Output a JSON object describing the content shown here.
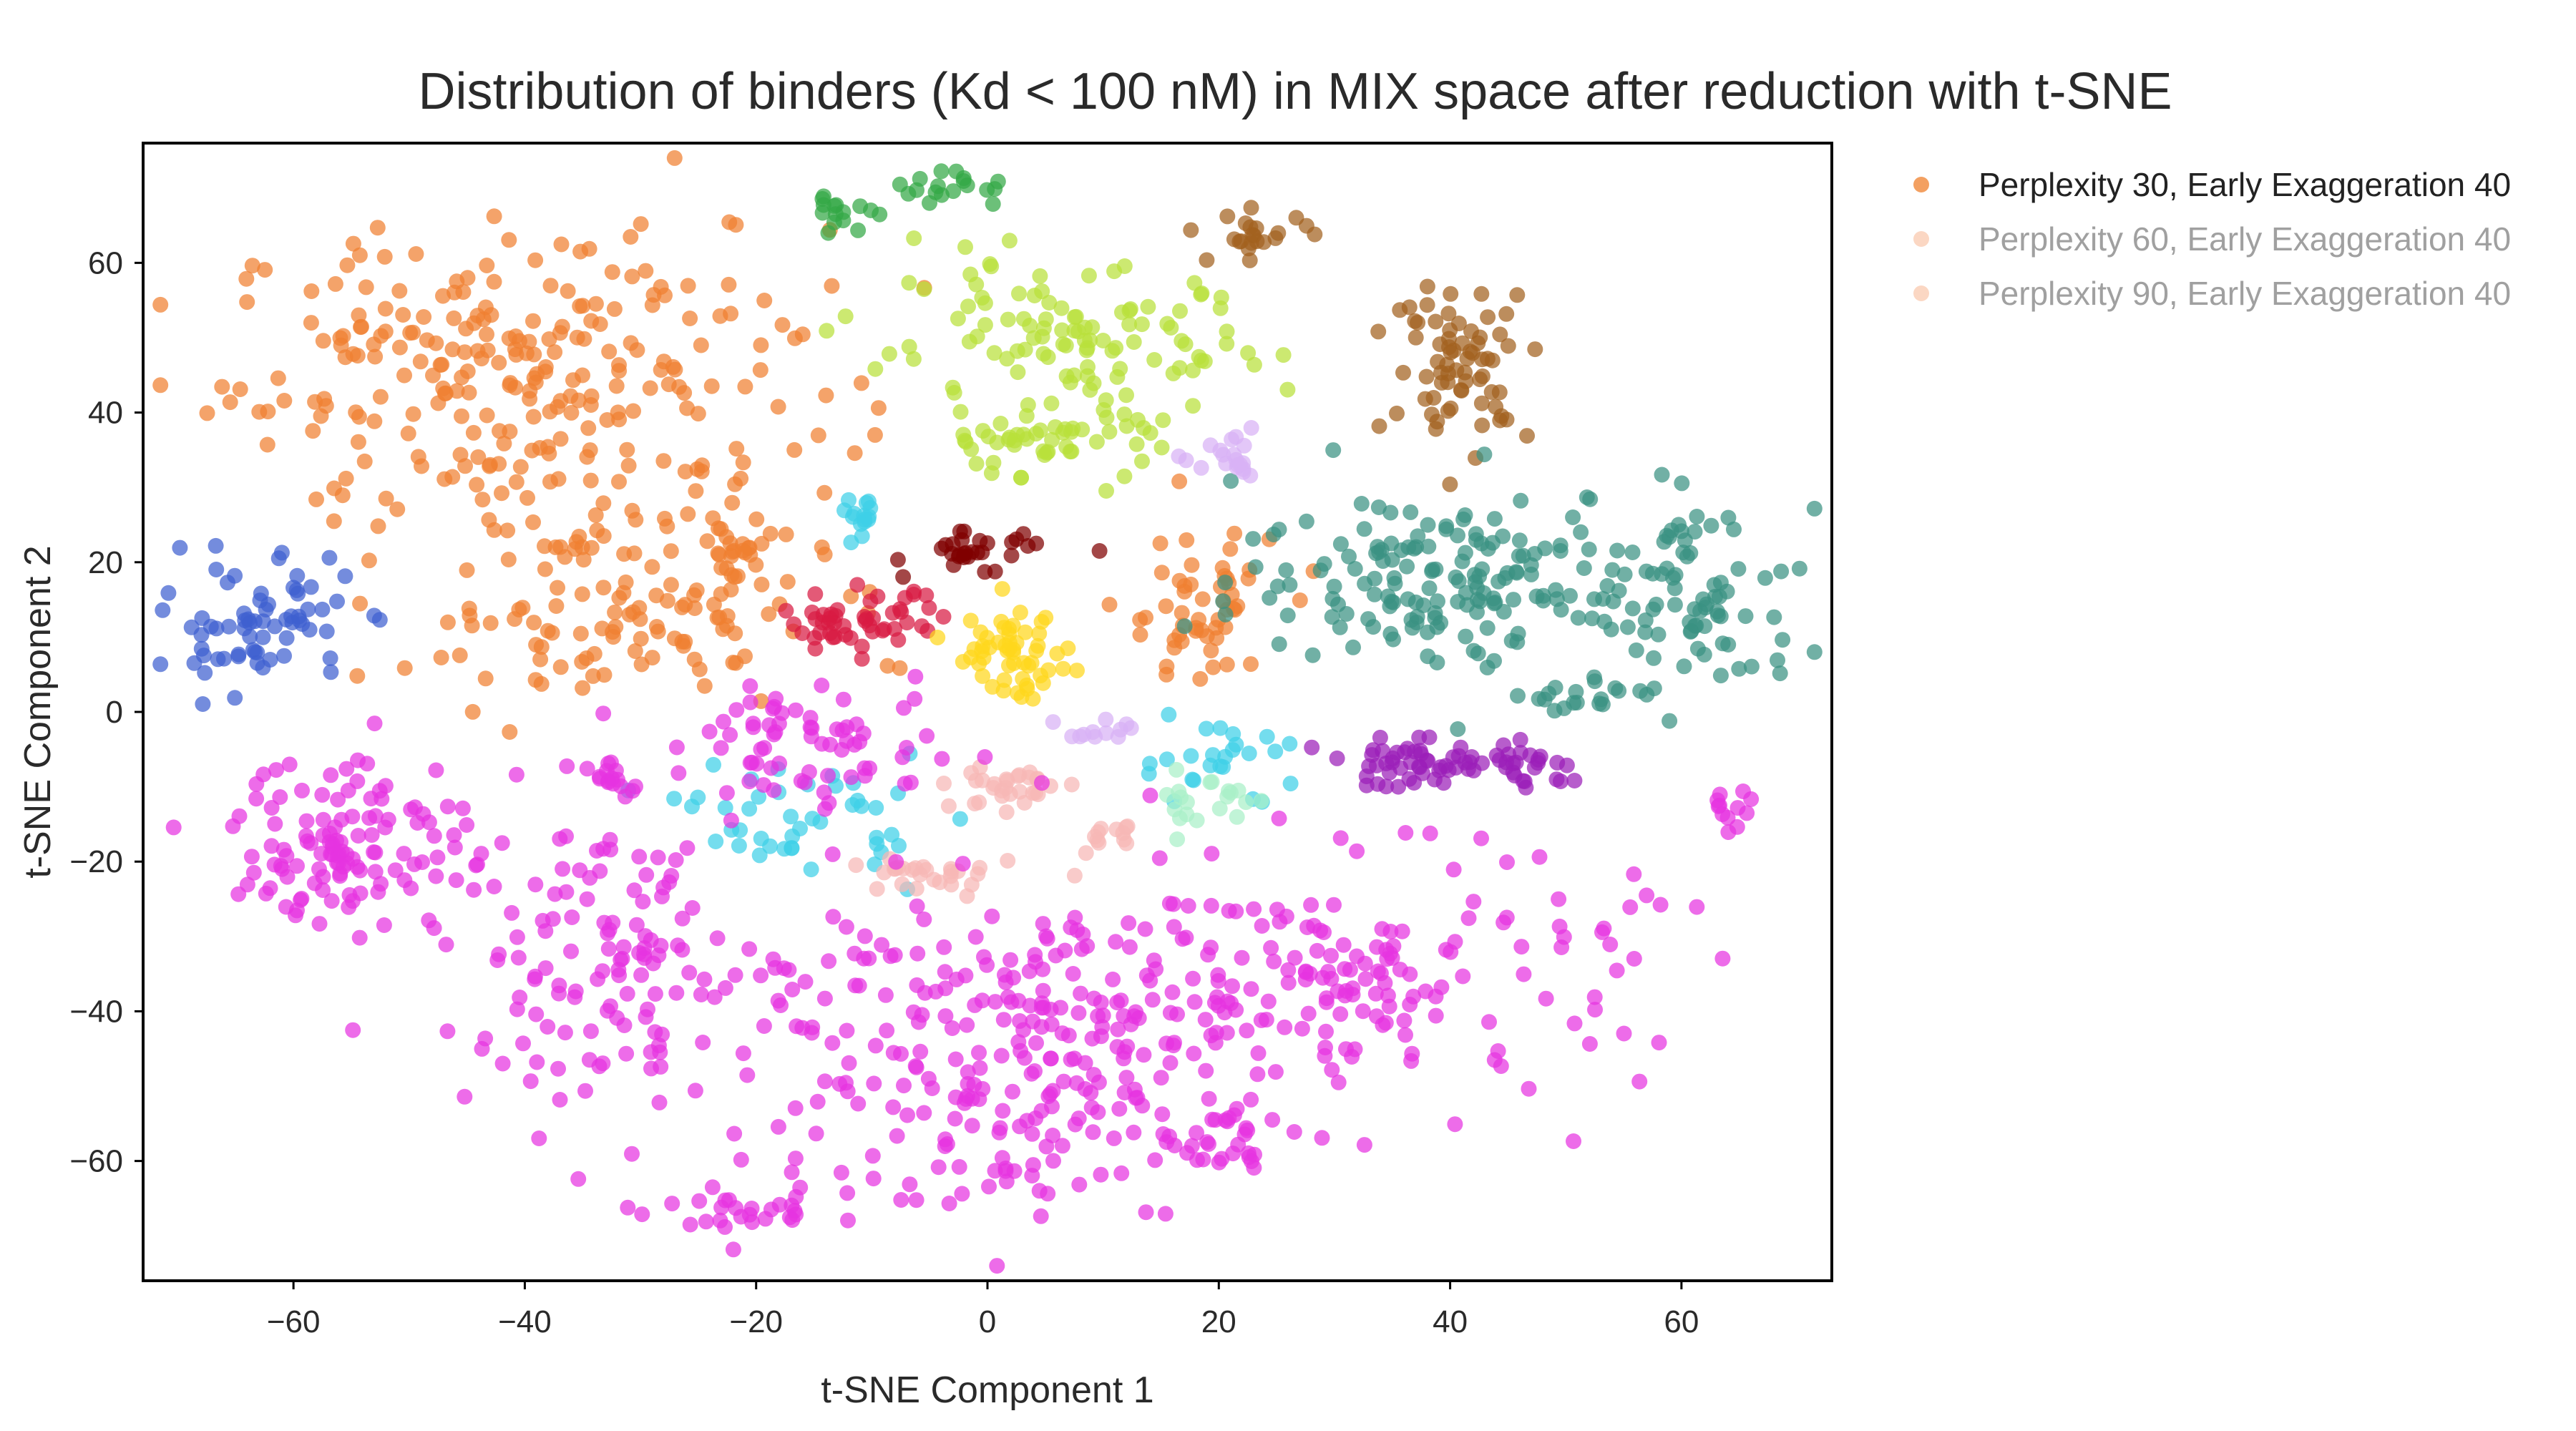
{
  "chart_data": {
    "type": "scatter",
    "title": "Distribution of binders (Kd < 100 nM) in MIX space after reduction with t-SNE",
    "xlabel": "t-SNE Component 1",
    "ylabel": "t-SNE Component 2",
    "xlim": [
      -73,
      73
    ],
    "ylim": [
      -76,
      76
    ],
    "xticks": [
      -60,
      -40,
      -20,
      0,
      20,
      40,
      60
    ],
    "yticks": [
      -60,
      -40,
      -20,
      0,
      20,
      40,
      60
    ],
    "grid": false,
    "legend_position": "top-right, outside plot",
    "series": [
      {
        "name": "Perplexity 30, Early Exaggeration 40",
        "color": "#f0883a",
        "visible": true
      },
      {
        "name": "Perplexity 60, Early Exaggeration 40",
        "color": "#fbd3bd",
        "visible": false
      },
      {
        "name": "Perplexity 90, Early Exaggeration 40",
        "color": "#fbd3bd",
        "visible": false
      }
    ],
    "clusters": [
      {
        "color": "#f08030",
        "cx": -40,
        "cy": 45,
        "sx": 13,
        "sy": 10,
        "n": 260
      },
      {
        "color": "#f08030",
        "cx": -32,
        "cy": 14,
        "sx": 9,
        "sy": 7,
        "n": 130
      },
      {
        "color": "#f08030",
        "cx": -22,
        "cy": 22,
        "sx": 2,
        "sy": 1.5,
        "n": 20
      },
      {
        "color": "#f08030",
        "cx": 18,
        "cy": 13,
        "sx": 3.5,
        "sy": 6,
        "n": 55
      },
      {
        "color": "#3f60d0",
        "cx": -63,
        "cy": 12,
        "sx": 4,
        "sy": 4.5,
        "n": 70
      },
      {
        "color": "#33a845",
        "cx": -12,
        "cy": 67,
        "sx": 1.5,
        "sy": 1,
        "n": 15
      },
      {
        "color": "#33a845",
        "cx": -3,
        "cy": 70,
        "sx": 2.5,
        "sy": 1.2,
        "n": 18
      },
      {
        "color": "#b8e03a",
        "cx": 7,
        "cy": 49,
        "sx": 9,
        "sy": 5,
        "n": 110
      },
      {
        "color": "#b8e03a",
        "cx": 5,
        "cy": 36,
        "sx": 5,
        "sy": 2.5,
        "n": 50
      },
      {
        "color": "#a2611e",
        "cx": 23,
        "cy": 64,
        "sx": 2.5,
        "sy": 1.5,
        "n": 22
      },
      {
        "color": "#a2611e",
        "cx": 41,
        "cy": 47,
        "sx": 3,
        "sy": 5,
        "n": 70
      },
      {
        "color": "#3a9182",
        "cx": 40,
        "cy": 18,
        "sx": 9,
        "sy": 6,
        "n": 160
      },
      {
        "color": "#3a9182",
        "cx": 61,
        "cy": 15,
        "sx": 5,
        "sy": 7,
        "n": 80
      },
      {
        "color": "#3a9182",
        "cx": 53,
        "cy": 2,
        "sx": 3,
        "sy": 1,
        "n": 20
      },
      {
        "color": "#3fd0e8",
        "cx": -11,
        "cy": 26,
        "sx": 1,
        "sy": 1.2,
        "n": 15
      },
      {
        "color": "#3fd0e8",
        "cx": -16,
        "cy": -14,
        "sx": 5,
        "sy": 4,
        "n": 45
      },
      {
        "color": "#3fd0e8",
        "cx": 20,
        "cy": -6,
        "sx": 4,
        "sy": 3,
        "n": 25
      },
      {
        "color": "#d81b43",
        "cx": -11,
        "cy": 12,
        "sx": 3.5,
        "sy": 2,
        "n": 50
      },
      {
        "color": "#800000",
        "cx": -1,
        "cy": 21,
        "sx": 3,
        "sy": 1.5,
        "n": 30
      },
      {
        "color": "#ffd71c",
        "cx": 2,
        "cy": 8,
        "sx": 2.5,
        "sy": 3,
        "n": 55
      },
      {
        "color": "#d8b2f5",
        "cx": 21,
        "cy": 33,
        "sx": 1.5,
        "sy": 1.5,
        "n": 20
      },
      {
        "color": "#d8b2f5",
        "cx": 10,
        "cy": -3,
        "sx": 2,
        "sy": 1,
        "n": 12
      },
      {
        "color": "#a9f0c8",
        "cx": 19,
        "cy": -12,
        "sx": 3,
        "sy": 2.5,
        "n": 20
      },
      {
        "color": "#f6b7b5",
        "cx": 2,
        "cy": -10,
        "sx": 2.5,
        "sy": 1.5,
        "n": 30
      },
      {
        "color": "#f6b7b5",
        "cx": -5,
        "cy": -22,
        "sx": 3.5,
        "sy": 1.5,
        "n": 28
      },
      {
        "color": "#f6b7b5",
        "cx": 11,
        "cy": -17,
        "sx": 1.5,
        "sy": 1,
        "n": 12
      },
      {
        "color": "#9b1fb8",
        "cx": 37,
        "cy": -7,
        "sx": 4,
        "sy": 1.5,
        "n": 55
      },
      {
        "color": "#9b1fb8",
        "cx": 47,
        "cy": -7,
        "sx": 2,
        "sy": 1.5,
        "n": 20
      },
      {
        "color": "#e633e0",
        "cx": -55,
        "cy": -17,
        "sx": 5,
        "sy": 6,
        "n": 120
      },
      {
        "color": "#e633e0",
        "cx": -15,
        "cy": -5,
        "sx": 6,
        "sy": 4,
        "n": 70
      },
      {
        "color": "#e633e0",
        "cx": -33,
        "cy": -33,
        "sx": 7,
        "sy": 10,
        "n": 130
      },
      {
        "color": "#e633e0",
        "cx": 0,
        "cy": -45,
        "sx": 12,
        "sy": 11,
        "n": 280
      },
      {
        "color": "#e633e0",
        "cx": 33,
        "cy": -35,
        "sx": 12,
        "sy": 8,
        "n": 170
      },
      {
        "color": "#e633e0",
        "cx": -20,
        "cy": -67,
        "sx": 5,
        "sy": 2,
        "n": 30
      },
      {
        "color": "#e633e0",
        "cx": 20,
        "cy": -57,
        "sx": 2,
        "sy": 3,
        "n": 25
      },
      {
        "color": "#e633e0",
        "cx": 64,
        "cy": -13,
        "sx": 1,
        "sy": 1.5,
        "n": 12
      },
      {
        "color": "#e633e0",
        "cx": -33,
        "cy": -9,
        "sx": 2,
        "sy": 1,
        "n": 15
      }
    ]
  }
}
